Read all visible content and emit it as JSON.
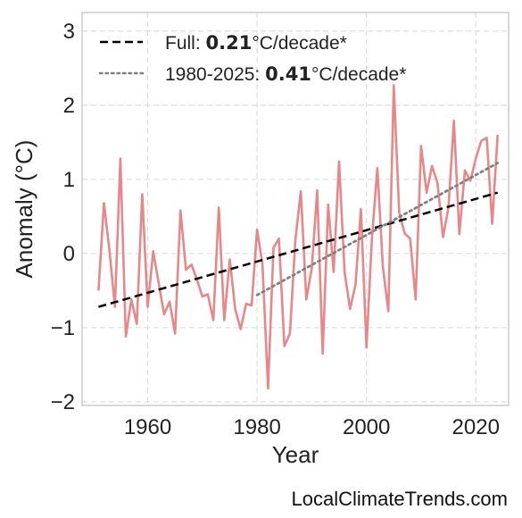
{
  "chart_data": {
    "type": "line",
    "title": "",
    "xlabel": "Year",
    "ylabel": "Anomaly (°C)",
    "xlim": [
      1948,
      2026
    ],
    "ylim": [
      -2.05,
      3.25
    ],
    "x_ticks": [
      1960,
      1980,
      2000,
      2020
    ],
    "x_tick_labels": [
      "1960",
      "1980",
      "2000",
      "2020"
    ],
    "y_ticks": [
      -2,
      -1,
      0,
      1,
      2,
      3
    ],
    "y_tick_labels": [
      "−2",
      "−1",
      "0",
      "1",
      "2",
      "3"
    ],
    "grid": true,
    "legend_position": "top-left",
    "series": [
      {
        "style": "line",
        "color": "#e8878a",
        "x": [
          1951,
          1952,
          1953,
          1954,
          1955,
          1956,
          1957,
          1958,
          1959,
          1960,
          1961,
          1962,
          1963,
          1964,
          1965,
          1966,
          1967,
          1968,
          1969,
          1970,
          1971,
          1972,
          1973,
          1974,
          1975,
          1976,
          1977,
          1978,
          1979,
          1980,
          1981,
          1982,
          1983,
          1984,
          1985,
          1986,
          1987,
          1988,
          1989,
          1990,
          1991,
          1992,
          1993,
          1994,
          1995,
          1996,
          1997,
          1998,
          1999,
          2000,
          2001,
          2002,
          2003,
          2004,
          2005,
          2006,
          2007,
          2008,
          2009,
          2010,
          2011,
          2012,
          2013,
          2014,
          2015,
          2016,
          2017,
          2018,
          2019,
          2020,
          2021,
          2022,
          2023,
          2024
        ],
        "y": [
          -0.5,
          0.68,
          0.05,
          -0.72,
          1.28,
          -1.12,
          -0.62,
          -0.95,
          0.8,
          -0.72,
          0.03,
          -0.4,
          -0.82,
          -0.65,
          -1.08,
          0.58,
          -0.22,
          -0.15,
          -0.35,
          -0.58,
          -0.55,
          -0.9,
          0.62,
          -0.9,
          -0.08,
          -0.75,
          -1.02,
          -0.68,
          -0.7,
          0.32,
          -0.15,
          -1.82,
          0.08,
          0.2,
          -1.25,
          -1.08,
          0.18,
          0.84,
          -0.62,
          -0.2,
          0.85,
          -1.35,
          0.66,
          -0.25,
          1.24,
          -0.25,
          -0.75,
          -0.42,
          0.6,
          -1.27,
          0.2,
          1.15,
          -0.18,
          -0.78,
          2.27,
          0.55,
          0.27,
          0.2,
          -0.62,
          1.45,
          0.82,
          1.18,
          0.95,
          0.22,
          0.62,
          1.79,
          0.26,
          1.12,
          0.98,
          1.28,
          1.52,
          1.56,
          0.4,
          1.6
        ]
      },
      {
        "name": "Full: 0.21°C/decade*",
        "style": "dashed",
        "color": "#000000",
        "x": [
          1951,
          2024
        ],
        "y": [
          -0.72,
          0.82
        ]
      },
      {
        "name": "1980-2025: 0.41°C/decade*",
        "style": "dotted",
        "color": "#808080",
        "x": [
          1980,
          2024
        ],
        "y": [
          -0.56,
          1.22
        ]
      }
    ],
    "legend": [
      {
        "prefix": "Full: ",
        "value": "0.21",
        "suffix": "°C/decade*"
      },
      {
        "prefix": "1980-2025: ",
        "value": "0.41",
        "suffix": "°C/decade*"
      }
    ]
  },
  "credit": "LocalClimateTrends.com"
}
